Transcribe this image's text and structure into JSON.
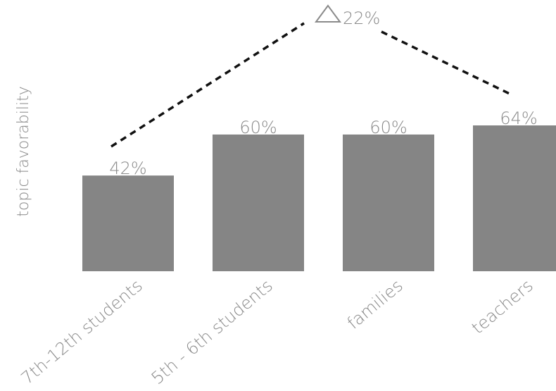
{
  "chart_data": {
    "type": "bar",
    "title": "",
    "xlabel": "",
    "ylabel": "topic favorability",
    "categories": [
      "7th-12th students",
      "5th - 6th students",
      "families",
      "teachers"
    ],
    "values": [
      42,
      60,
      60,
      64
    ],
    "value_labels": [
      "42%",
      "60%",
      "60%",
      "64%"
    ],
    "ylim": [
      0,
      64
    ],
    "grid": false,
    "bar_color": "#858585",
    "annotation": {
      "type": "delta",
      "symbol": "△",
      "text": "22%",
      "from_category": "7th-12th students",
      "to_category": "teachers",
      "line_style": "dashed",
      "line_color": "#111111"
    }
  }
}
